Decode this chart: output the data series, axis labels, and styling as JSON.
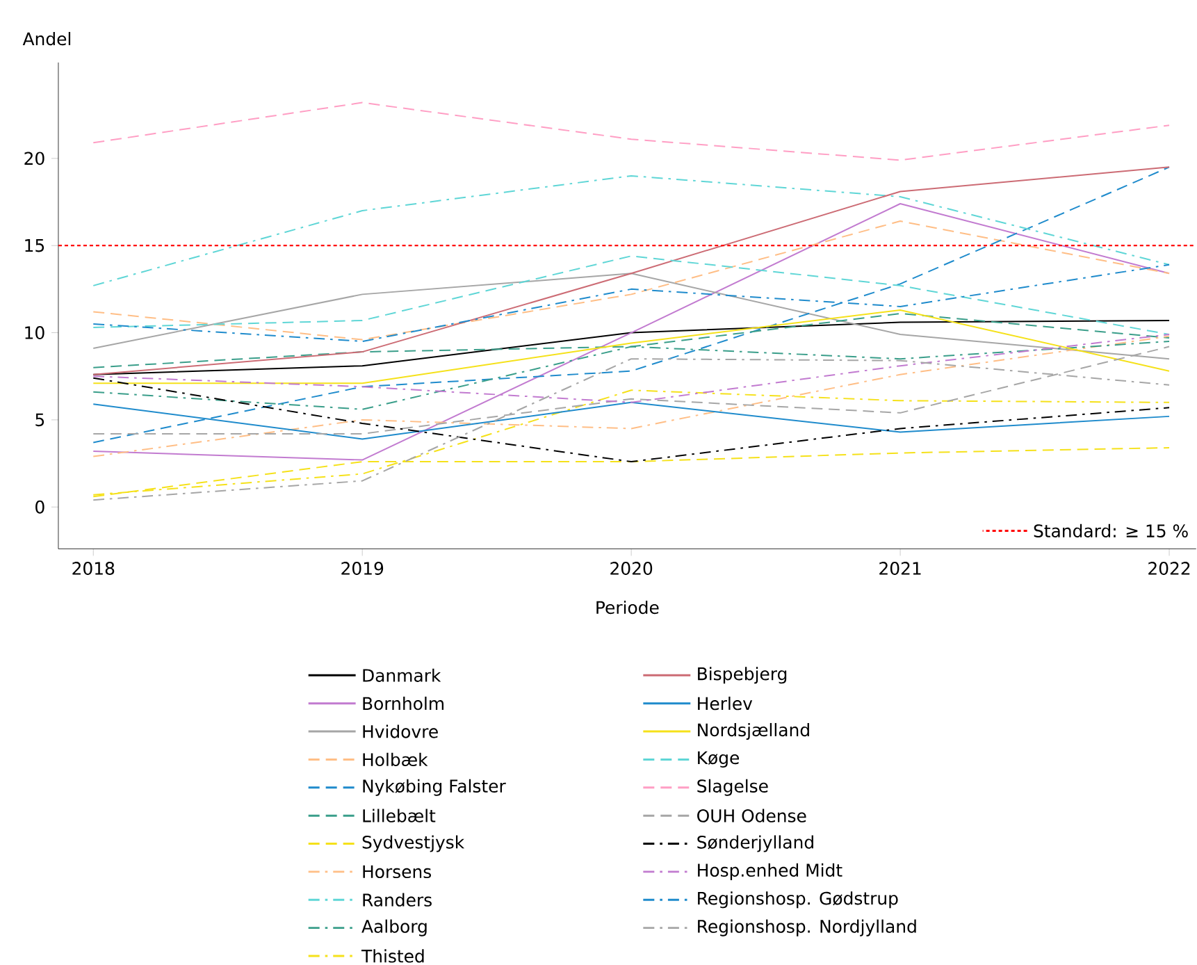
{
  "chart_data": {
    "type": "line",
    "xlabel": "Periode",
    "ylabel": "Andel",
    "x": [
      2018,
      2019,
      2020,
      2021,
      2022
    ],
    "xlim": [
      2017.87,
      2022.1
    ],
    "xticks": [
      2018,
      2019,
      2020,
      2021,
      2022
    ],
    "ylim": [
      -2.4,
      25.5
    ],
    "yticks": [
      0,
      5,
      10,
      15,
      20
    ],
    "legend": "bottom",
    "ref_lines": [
      {
        "axis": "y",
        "value": 15,
        "label": "Standard: ≥ 15 %",
        "color": "#ff0000",
        "line_style": "dotted"
      }
    ],
    "series": [
      {
        "name": "Danmark",
        "color": "#000000",
        "line_style": "solid",
        "values": [
          7.6,
          8.1,
          10.0,
          10.6,
          10.7
        ]
      },
      {
        "name": "Bornholm",
        "color": "#c27bd0",
        "line_style": "solid",
        "values": [
          3.2,
          2.7,
          10.0,
          17.4,
          13.4
        ]
      },
      {
        "name": "Hvidovre",
        "color": "#a6a6a6",
        "line_style": "solid",
        "values": [
          9.1,
          12.2,
          13.4,
          9.9,
          8.5
        ]
      },
      {
        "name": "Holbæk",
        "color": "#ffbe86",
        "line_style": "dashed",
        "values": [
          11.2,
          9.6,
          12.2,
          16.4,
          13.4
        ]
      },
      {
        "name": "Nykøbing Falster",
        "color": "#1f8bcc",
        "line_style": "dashed",
        "values": [
          3.7,
          6.9,
          7.8,
          12.8,
          19.5
        ]
      },
      {
        "name": "Lillebælt",
        "color": "#3a9e8a",
        "line_style": "dashed",
        "values": [
          8.0,
          8.9,
          9.2,
          11.1,
          9.7
        ]
      },
      {
        "name": "Sydvestjysk",
        "color": "#f5e11a",
        "line_style": "dashed",
        "values": [
          0.6,
          2.6,
          2.6,
          3.1,
          3.4
        ]
      },
      {
        "name": "Horsens",
        "color": "#ffbe86",
        "line_style": "dashdot",
        "values": [
          2.9,
          5.0,
          4.5,
          7.6,
          9.8
        ]
      },
      {
        "name": "Randers",
        "color": "#5fd6d6",
        "line_style": "dashdot",
        "values": [
          12.7,
          17.0,
          19.0,
          17.8,
          13.9
        ]
      },
      {
        "name": "Aalborg",
        "color": "#3a9e8a",
        "line_style": "dashdot",
        "values": [
          6.6,
          5.6,
          9.2,
          8.5,
          9.5
        ]
      },
      {
        "name": "Thisted",
        "color": "#f5e11a",
        "line_style": "dashdot",
        "values": [
          0.7,
          1.9,
          6.7,
          6.1,
          6.0
        ]
      },
      {
        "name": "Bispebjerg",
        "color": "#cc6b74",
        "line_style": "solid",
        "values": [
          7.6,
          8.9,
          13.4,
          18.1,
          19.5
        ]
      },
      {
        "name": "Herlev",
        "color": "#1f8bcc",
        "line_style": "solid",
        "values": [
          5.9,
          3.9,
          6.0,
          4.3,
          5.2
        ]
      },
      {
        "name": "Nordsjælland",
        "color": "#f5e11a",
        "line_style": "solid",
        "values": [
          7.1,
          7.1,
          9.4,
          11.3,
          7.8
        ]
      },
      {
        "name": "Køge",
        "color": "#5fd6d6",
        "line_style": "dashed",
        "values": [
          10.3,
          10.7,
          14.4,
          12.7,
          9.9
        ]
      },
      {
        "name": "Slagelse",
        "color": "#ff9ec4",
        "line_style": "dashed",
        "values": [
          20.9,
          23.2,
          21.1,
          19.9,
          21.9
        ]
      },
      {
        "name": "OUH Odense",
        "color": "#a6a6a6",
        "line_style": "dashed",
        "values": [
          4.2,
          4.2,
          6.2,
          5.4,
          9.2
        ]
      },
      {
        "name": "Sønderjylland",
        "color": "#000000",
        "line_style": "dashdot",
        "values": [
          7.4,
          4.8,
          2.6,
          4.5,
          5.7
        ]
      },
      {
        "name": "Hosp.enhed Midt",
        "color": "#c27bd0",
        "line_style": "dashdot",
        "values": [
          7.5,
          6.9,
          6.0,
          8.1,
          9.9
        ]
      },
      {
        "name": "Regionshosp. Gødstrup",
        "color": "#1f8bcc",
        "line_style": "dashdot",
        "values": [
          10.5,
          9.5,
          12.5,
          11.5,
          13.9
        ]
      },
      {
        "name": "Regionshosp. Nordjylland",
        "color": "#a6a6a6",
        "line_style": "dashdot",
        "values": [
          0.4,
          1.5,
          8.5,
          8.4,
          7.0
        ]
      }
    ]
  }
}
